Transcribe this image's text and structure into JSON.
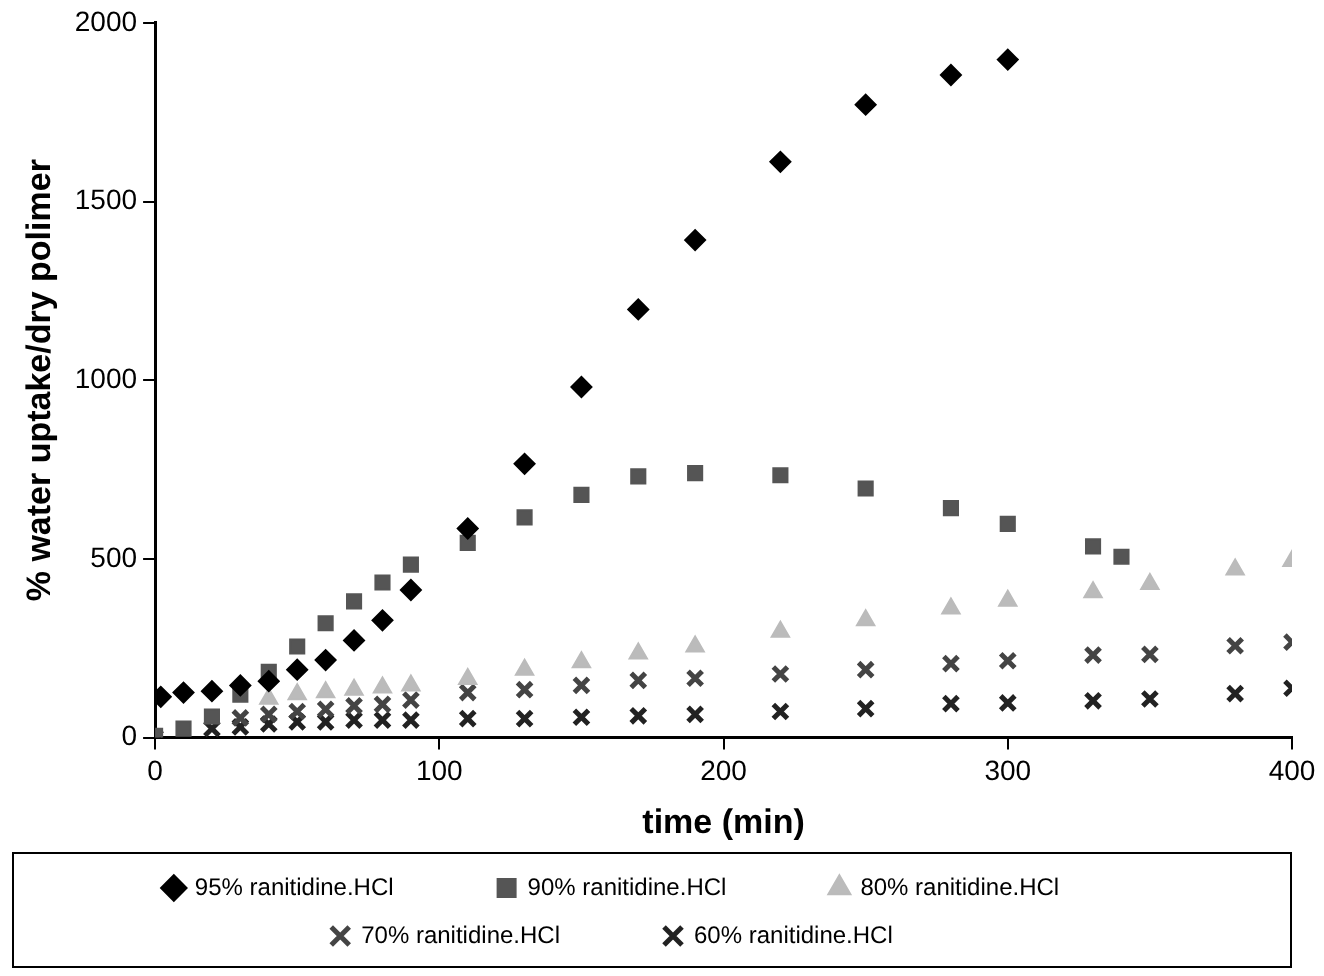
{
  "chart_data": {
    "type": "scatter",
    "xlabel": "time (min)",
    "ylabel": "% water uptake/dry polimer",
    "xlim": [
      0,
      400
    ],
    "xticks": [
      0,
      100,
      200,
      300,
      400
    ],
    "ylim": [
      0,
      2000
    ],
    "yticks": [
      0,
      500,
      1000,
      1500,
      2000
    ],
    "grid": false,
    "legend": "bottom",
    "series": [
      {
        "name": "95% ranitidine.HCl",
        "color": "#000000",
        "marker": "diamond",
        "x": [
          2,
          10,
          20,
          30,
          40,
          50,
          60,
          70,
          80,
          90,
          110,
          130,
          150,
          170,
          190,
          220,
          250,
          280,
          300
        ],
        "values": [
          114,
          126,
          130,
          146,
          158,
          190,
          217,
          272,
          328,
          413,
          585,
          766,
          981,
          1198,
          1392,
          1611,
          1771,
          1854,
          1897
        ]
      },
      {
        "name": "90% ranitidine.HCl",
        "color": "#555555",
        "marker": "square",
        "x": [
          0,
          10,
          20,
          30,
          40,
          50,
          60,
          70,
          80,
          90,
          110,
          130,
          150,
          170,
          190,
          220,
          250,
          280,
          300,
          330,
          340
        ],
        "values": [
          5,
          25,
          59,
          120,
          184,
          255,
          320,
          381,
          434,
          484,
          545,
          616,
          679,
          731,
          740,
          734,
          697,
          642,
          598,
          535,
          506
        ]
      },
      {
        "name": "80% ranitidine.HCl",
        "color": "#bbbbbb",
        "marker": "triangle",
        "x": [
          40,
          50,
          60,
          70,
          80,
          90,
          110,
          130,
          150,
          170,
          190,
          220,
          250,
          280,
          300,
          330,
          350,
          380,
          400
        ],
        "values": [
          109,
          121,
          127,
          134,
          140,
          146,
          164,
          190,
          211,
          235,
          255,
          296,
          328,
          361,
          383,
          407,
          430,
          470,
          494
        ]
      },
      {
        "name": "70% ranitidine.HCl",
        "color": "#444444",
        "marker": "cross",
        "x": [
          30,
          40,
          50,
          60,
          70,
          80,
          90,
          110,
          130,
          150,
          170,
          190,
          220,
          250,
          280,
          300,
          330,
          350,
          380,
          400
        ],
        "values": [
          55,
          65,
          73,
          79,
          89,
          93,
          105,
          126,
          134,
          146,
          160,
          166,
          178,
          190,
          207,
          215,
          231,
          233,
          257,
          267
        ]
      },
      {
        "name": "60% ranitidine.HCl",
        "color": "#222222",
        "marker": "cross",
        "x": [
          0,
          20,
          30,
          40,
          50,
          60,
          70,
          80,
          90,
          110,
          130,
          150,
          170,
          190,
          220,
          250,
          280,
          300,
          330,
          350,
          380,
          400
        ],
        "values": [
          0,
          25,
          30,
          38,
          44,
          44,
          49,
          49,
          49,
          53,
          53,
          57,
          61,
          65,
          73,
          81,
          95,
          97,
          103,
          108,
          123,
          138
        ]
      }
    ]
  }
}
